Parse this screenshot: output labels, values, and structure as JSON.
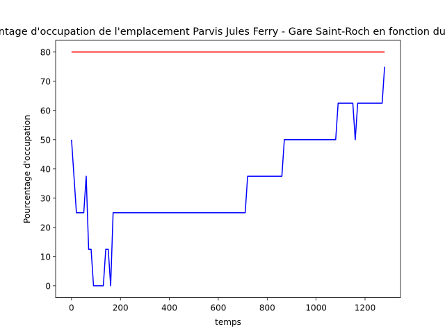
{
  "chart_data": {
    "type": "line",
    "title": "Pourcentage d'occupation de l'emplacement Parvis Jules Ferry - Gare Saint-Roch en fonction du temps",
    "xlabel": "temps",
    "ylabel": "Pourcentage d'occupation",
    "xlim": [
      -65,
      1345
    ],
    "ylim": [
      -4,
      84
    ],
    "xticks": [
      0,
      200,
      400,
      600,
      800,
      1000,
      1200
    ],
    "yticks": [
      0,
      10,
      20,
      30,
      40,
      50,
      60,
      70,
      80
    ],
    "grid": false,
    "series": [
      {
        "color": "#ff0000",
        "x": [
          0,
          1280
        ],
        "y": [
          80,
          80
        ]
      },
      {
        "color": "#0000ff",
        "x": [
          0,
          20,
          50,
          60,
          70,
          80,
          90,
          130,
          140,
          150,
          160,
          170,
          710,
          720,
          860,
          870,
          1080,
          1090,
          1150,
          1160,
          1170,
          1270,
          1280
        ],
        "y": [
          50,
          25,
          25,
          37.5,
          12.5,
          12.5,
          0,
          0,
          12.5,
          12.5,
          0,
          25,
          25,
          37.5,
          37.5,
          50,
          50,
          62.5,
          62.5,
          50,
          62.5,
          62.5,
          75
        ]
      }
    ]
  }
}
